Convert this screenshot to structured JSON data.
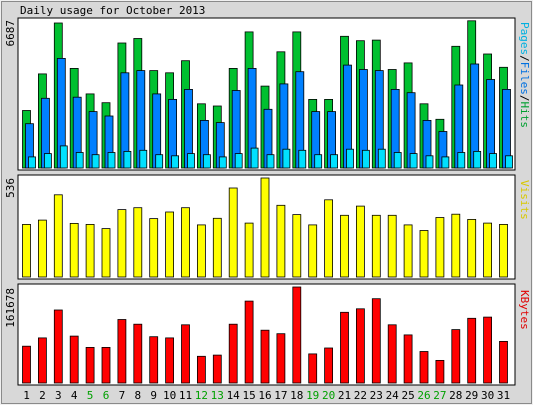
{
  "title": "Daily usage for October 2013",
  "chart_data": [
    {
      "type": "bar",
      "panel": "hits",
      "ymax_label": "6687",
      "ylim": [
        0,
        6687
      ],
      "categories": [
        "1",
        "2",
        "3",
        "4",
        "5",
        "6",
        "7",
        "8",
        "9",
        "10",
        "11",
        "12",
        "13",
        "14",
        "15",
        "16",
        "17",
        "18",
        "19",
        "20",
        "21",
        "22",
        "23",
        "24",
        "25",
        "26",
        "27",
        "28",
        "29",
        "30",
        "31"
      ],
      "weekend_days": [
        "5",
        "6",
        "12",
        "13",
        "19",
        "20",
        "26",
        "27"
      ],
      "series": [
        {
          "name": "Hits",
          "color": "#00c030",
          "values": [
            2600,
            4250,
            6550,
            4500,
            3350,
            2950,
            5650,
            5850,
            4400,
            4300,
            4850,
            2900,
            2800,
            4500,
            6150,
            3700,
            5250,
            6150,
            3100,
            3100,
            5950,
            5750,
            5780,
            4450,
            4750,
            2900,
            2200,
            5500,
            6650,
            5150,
            4550
          ]
        },
        {
          "name": "Files",
          "color": "#0080ff",
          "values": [
            2000,
            3150,
            4950,
            3200,
            2550,
            2350,
            4300,
            4400,
            3350,
            3100,
            3550,
            2150,
            2050,
            3500,
            4500,
            2650,
            3800,
            4350,
            2550,
            2550,
            4650,
            4450,
            4400,
            3550,
            3400,
            2150,
            1650,
            3750,
            4700,
            4000,
            3550
          ]
        },
        {
          "name": "Pages",
          "color": "#00e0ff",
          "values": [
            500,
            650,
            1000,
            700,
            600,
            700,
            750,
            800,
            600,
            550,
            650,
            600,
            500,
            650,
            900,
            600,
            850,
            800,
            600,
            600,
            850,
            800,
            850,
            700,
            650,
            550,
            500,
            700,
            750,
            650,
            550
          ]
        }
      ]
    },
    {
      "type": "bar",
      "panel": "visits",
      "ymax_label": "536",
      "ylim": [
        0,
        536
      ],
      "categories": [
        "1",
        "2",
        "3",
        "4",
        "5",
        "6",
        "7",
        "8",
        "9",
        "10",
        "11",
        "12",
        "13",
        "14",
        "15",
        "16",
        "17",
        "18",
        "19",
        "20",
        "21",
        "22",
        "23",
        "24",
        "25",
        "26",
        "27",
        "28",
        "29",
        "30",
        "31"
      ],
      "series": [
        {
          "name": "Visits",
          "color": "#ffff00",
          "values": [
            285,
            308,
            445,
            290,
            285,
            262,
            365,
            375,
            316,
            352,
            375,
            282,
            318,
            482,
            292,
            536,
            388,
            338,
            282,
            418,
            334,
            384,
            334,
            334,
            282,
            252,
            322,
            340,
            312,
            292,
            285
          ]
        }
      ]
    },
    {
      "type": "bar",
      "panel": "kbytes",
      "ymax_label": "161678",
      "ylim": [
        0,
        161678
      ],
      "categories": [
        "1",
        "2",
        "3",
        "4",
        "5",
        "6",
        "7",
        "8",
        "9",
        "10",
        "11",
        "12",
        "13",
        "14",
        "15",
        "16",
        "17",
        "18",
        "19",
        "20",
        "21",
        "22",
        "23",
        "24",
        "25",
        "26",
        "27",
        "28",
        "29",
        "30",
        "31"
      ],
      "series": [
        {
          "name": "KBytes",
          "color": "#ff0000",
          "values": [
            62000,
            76000,
            123000,
            79000,
            60000,
            60000,
            107000,
            99000,
            78000,
            76000,
            98000,
            45000,
            47000,
            99000,
            138000,
            89000,
            83000,
            161678,
            49000,
            59000,
            119000,
            125000,
            142000,
            98000,
            81000,
            53000,
            38000,
            90000,
            109000,
            111000,
            70000
          ]
        }
      ]
    }
  ],
  "legend_labels": {
    "pages": "Pages",
    "files": "Files",
    "hits": "Hits",
    "visits": "Visits",
    "kbytes": "KBytes",
    "sep": "/"
  },
  "colors": {
    "background": "#d8d8d8",
    "panel": "#ffffff",
    "weekday_label": "#000000",
    "weekend_label": "#00a000"
  }
}
